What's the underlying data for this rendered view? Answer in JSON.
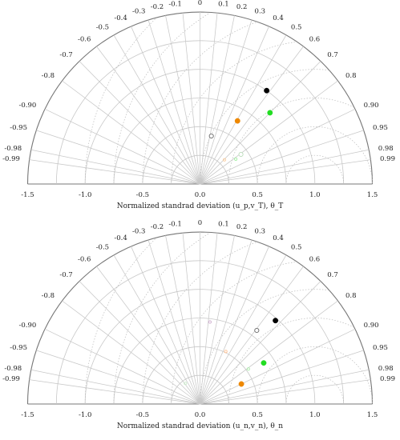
{
  "chart_data": [
    {
      "type": "scatter",
      "subtype": "taylor-diagram",
      "xlabel": "Normalized standrad deviation (u_p,v_T), θ_T",
      "radial_ticks": [
        "-1.5",
        "-1.0",
        "-0.5",
        "0.0",
        "0.5",
        "1.0",
        "1.5"
      ],
      "correlation_ticks": [
        "-0.99",
        "-0.98",
        "-0.95",
        "-0.90",
        "-0.8",
        "-0.7",
        "-0.6",
        "-0.5",
        "-0.4",
        "-0.3",
        "-0.2",
        "-0.1",
        "0",
        "0.1",
        "0.2",
        "0.3",
        "0.4",
        "0.5",
        "0.6",
        "0.7",
        "0.8",
        "0.90",
        "0.95",
        "0.98",
        "0.99"
      ],
      "rmax": 1.5,
      "points": [
        {
          "std": 1.0,
          "corr": 0.58,
          "color": "#000000",
          "marker": "filled"
        },
        {
          "std": 0.87,
          "corr": 0.7,
          "color": "#22dd22",
          "marker": "filled"
        },
        {
          "std": 0.64,
          "corr": 0.51,
          "color": "#ee8800",
          "marker": "filled"
        },
        {
          "std": 0.44,
          "corr": 0.81,
          "color": "#bbddbb",
          "marker": "hollow"
        },
        {
          "std": 0.43,
          "corr": 0.23,
          "color": "#666666",
          "marker": "hollow"
        },
        {
          "std": 0.38,
          "corr": 0.82,
          "color": "#99ee99",
          "marker": "small"
        },
        {
          "std": 0.3,
          "corr": 0.71,
          "color": "#ffcc99",
          "marker": "small"
        }
      ]
    },
    {
      "type": "scatter",
      "subtype": "taylor-diagram",
      "xlabel": "Normalized standrad deviation (u_n,v_n), θ_n",
      "radial_ticks": [
        "-1.5",
        "-1.0",
        "-0.5",
        "0.0",
        "0.5",
        "1.0",
        "1.5"
      ],
      "correlation_ticks": [
        "-0.99",
        "-0.98",
        "-0.95",
        "-0.90",
        "-0.8",
        "-0.7",
        "-0.6",
        "-0.5",
        "-0.4",
        "-0.3",
        "-0.2",
        "-0.1",
        "0",
        "0.1",
        "0.2",
        "0.3",
        "0.4",
        "0.5",
        "0.6",
        "0.7",
        "0.8",
        "0.90",
        "0.95",
        "0.98",
        "0.99"
      ],
      "rmax": 1.5,
      "points": [
        {
          "std": 0.98,
          "corr": 0.67,
          "color": "#000000",
          "marker": "filled"
        },
        {
          "std": 0.81,
          "corr": 0.61,
          "color": "#666666",
          "marker": "hollow"
        },
        {
          "std": 0.66,
          "corr": 0.84,
          "color": "#22dd22",
          "marker": "filled"
        },
        {
          "std": 0.51,
          "corr": 0.44,
          "color": "#ffbb88",
          "marker": "small"
        },
        {
          "std": 0.52,
          "corr": 0.81,
          "color": "#aaeeaa",
          "marker": "small"
        },
        {
          "std": 0.4,
          "corr": 0.9,
          "color": "#ee8800",
          "marker": "filled"
        },
        {
          "std": 0.72,
          "corr": 0.12,
          "color": "#ccaacc",
          "marker": "small"
        },
        {
          "std": 0.22,
          "corr": -0.58,
          "color": "#cceecc",
          "marker": "small"
        }
      ]
    }
  ]
}
